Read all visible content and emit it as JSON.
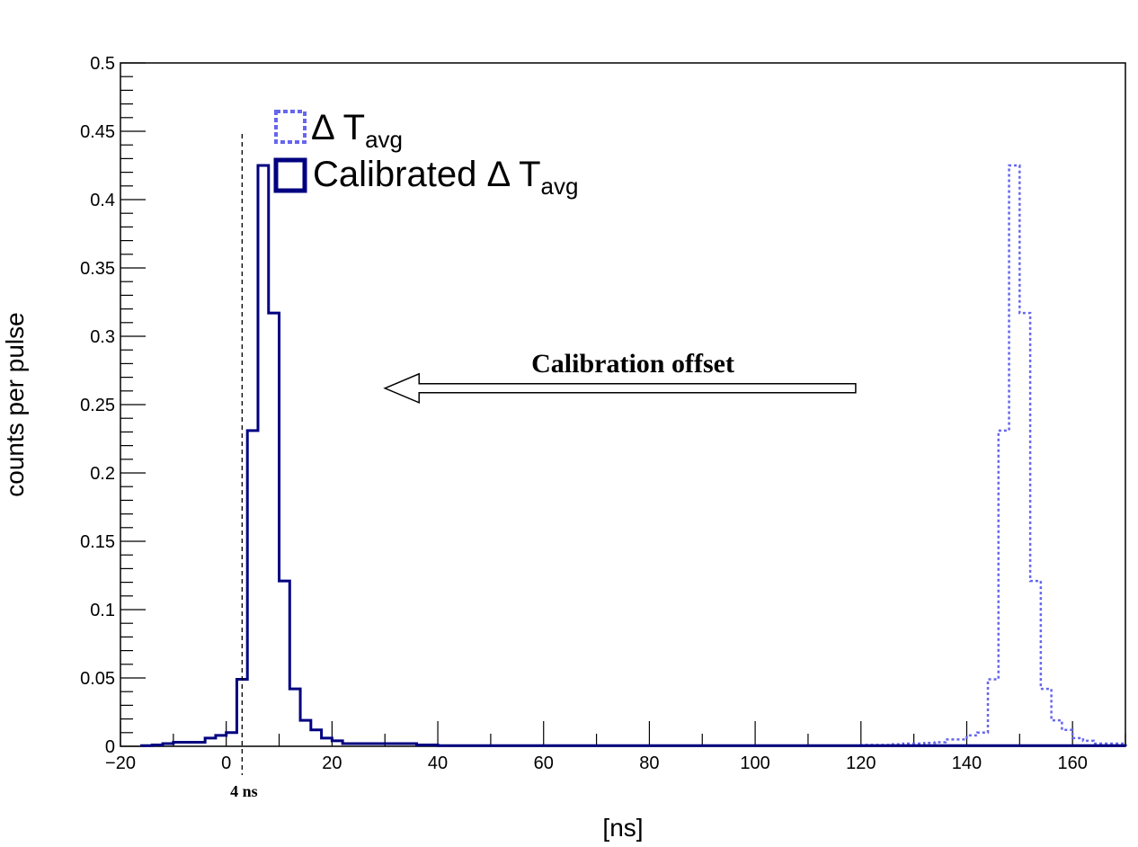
{
  "chart_data": {
    "type": "histogram",
    "title": "",
    "xlabel": "[ns]",
    "ylabel": "counts per pulse",
    "xlim": [
      -20,
      170
    ],
    "ylim": [
      0,
      0.5
    ],
    "bin_width": 2,
    "x_ticks": [
      "−20",
      "0",
      "20",
      "40",
      "60",
      "80",
      "100",
      "120",
      "140",
      "160"
    ],
    "x_tick_values": [
      -20,
      0,
      20,
      40,
      60,
      80,
      100,
      120,
      140,
      160
    ],
    "y_ticks": [
      "0",
      "0.05",
      "0.1",
      "0.15",
      "0.2",
      "0.25",
      "0.3",
      "0.35",
      "0.4",
      "0.45",
      "0.5"
    ],
    "y_tick_values": [
      0,
      0.05,
      0.1,
      0.15,
      0.2,
      0.25,
      0.3,
      0.35,
      0.4,
      0.45,
      0.5
    ],
    "grid": false,
    "legend_position": "top-left",
    "series": [
      {
        "name_main": "Δ T",
        "name_sub": "avg",
        "style": "dotted",
        "color": "#6666ee",
        "bin_start": 118,
        "values": [
          0.0005,
          0.001,
          0.001,
          0.001,
          0.0015,
          0.002,
          0.002,
          0.0025,
          0.003,
          0.005,
          0.005,
          0.008,
          0.01,
          0.049,
          0.231,
          0.425,
          0.317,
          0.121,
          0.042,
          0.019,
          0.012,
          0.006,
          0.004,
          0.002,
          0.002,
          0.002
        ]
      },
      {
        "name_main": "Calibrated Δ T",
        "name_sub": "avg",
        "style": "solid",
        "color": "#000080",
        "bin_start": -16,
        "values": [
          0.0005,
          0.001,
          0.002,
          0.003,
          0.003,
          0.003,
          0.006,
          0.008,
          0.01,
          0.049,
          0.231,
          0.425,
          0.317,
          0.121,
          0.042,
          0.019,
          0.012,
          0.006,
          0.004,
          0.002,
          0.002,
          0.002,
          0.002,
          0.002,
          0.002,
          0.002,
          0.001,
          0.001,
          0.0005,
          0.0005,
          0.0005,
          0.0005,
          0.0005,
          0.0005,
          0.0005,
          0.0005,
          0.0005,
          0.0005,
          0.0005,
          0.0005,
          0.0005,
          0.0005,
          0.0005,
          0.0005,
          0.0005,
          0.0005,
          0.0005,
          0.0005,
          0.0005,
          0.0005,
          0.0005,
          0.0005,
          0.0005,
          0.0005,
          0.0005,
          0.0005,
          0.0005,
          0.0005,
          0.0005,
          0.0005,
          0.0005,
          0.0005,
          0.0005,
          0.0005,
          0.0005,
          0.0005,
          0.0005,
          0.0005,
          0.0005,
          0.0005,
          0.0005,
          0.0005,
          0.0005,
          0.0005,
          0.0005,
          0.0005,
          0.0005,
          0.0005,
          0.0005,
          0.0005,
          0.0005,
          0.0005,
          0.0005,
          0.0005,
          0.0005,
          0.0005,
          0.0005,
          0.0005,
          0.0005,
          0.0005,
          0.0005,
          0.0005,
          0.0005
        ]
      }
    ],
    "annotations": {
      "vline_x": 3,
      "vline_top": 0.448,
      "vline_label": "4 ns",
      "arrow_text": "Calibration offset",
      "arrow_from_x": 119,
      "arrow_to_x": 30,
      "arrow_y": 0.262
    }
  }
}
